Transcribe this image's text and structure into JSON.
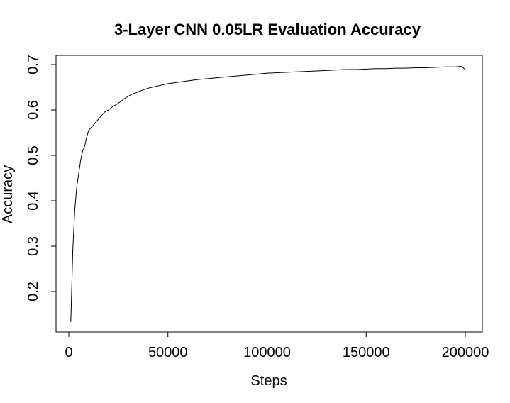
{
  "chart_data": {
    "type": "line",
    "title": "3-Layer CNN 0.05LR Evaluation Accuracy",
    "xlabel": "Steps",
    "ylabel": "Accuracy",
    "xlim": [
      1000,
      200000
    ],
    "ylim": [
      0.13,
      0.7
    ],
    "x_ticks": [
      {
        "value": 0,
        "label": "0"
      },
      {
        "value": 50000,
        "label": "50000"
      },
      {
        "value": 100000,
        "label": "100000"
      },
      {
        "value": 150000,
        "label": "150000"
      },
      {
        "value": 200000,
        "label": "200000"
      }
    ],
    "y_ticks": [
      {
        "value": 0.2,
        "label": "0.2"
      },
      {
        "value": 0.3,
        "label": "0.3"
      },
      {
        "value": 0.4,
        "label": "0.4"
      },
      {
        "value": 0.5,
        "label": "0.5"
      },
      {
        "value": 0.6,
        "label": "0.6"
      },
      {
        "value": 0.7,
        "label": "0.7"
      }
    ],
    "grid": false,
    "legend": "none",
    "series": [
      {
        "x": [
          1000,
          2000,
          3000,
          4000,
          5000,
          6000,
          7000,
          8000,
          9000,
          10000,
          12000,
          14000,
          16000,
          18000,
          20000,
          22000,
          24000,
          26000,
          28000,
          30000,
          32000,
          34000,
          36000,
          38000,
          40000,
          42000,
          44000,
          46000,
          48000,
          50000,
          55000,
          60000,
          65000,
          70000,
          75000,
          80000,
          85000,
          90000,
          95000,
          100000,
          105000,
          110000,
          115000,
          120000,
          125000,
          130000,
          135000,
          140000,
          145000,
          150000,
          155000,
          160000,
          165000,
          170000,
          175000,
          180000,
          185000,
          190000,
          195000,
          198000,
          200000
        ],
        "values": [
          0.133,
          0.29,
          0.38,
          0.43,
          0.46,
          0.49,
          0.51,
          0.52,
          0.54,
          0.555,
          0.565,
          0.575,
          0.585,
          0.595,
          0.6,
          0.607,
          0.612,
          0.618,
          0.625,
          0.63,
          0.635,
          0.638,
          0.642,
          0.645,
          0.648,
          0.65,
          0.652,
          0.654,
          0.656,
          0.658,
          0.661,
          0.664,
          0.667,
          0.669,
          0.671,
          0.673,
          0.675,
          0.677,
          0.679,
          0.681,
          0.682,
          0.683,
          0.684,
          0.685,
          0.686,
          0.687,
          0.688,
          0.689,
          0.689,
          0.69,
          0.691,
          0.691,
          0.692,
          0.692,
          0.693,
          0.693,
          0.694,
          0.695,
          0.695,
          0.696,
          0.689
        ]
      }
    ]
  }
}
